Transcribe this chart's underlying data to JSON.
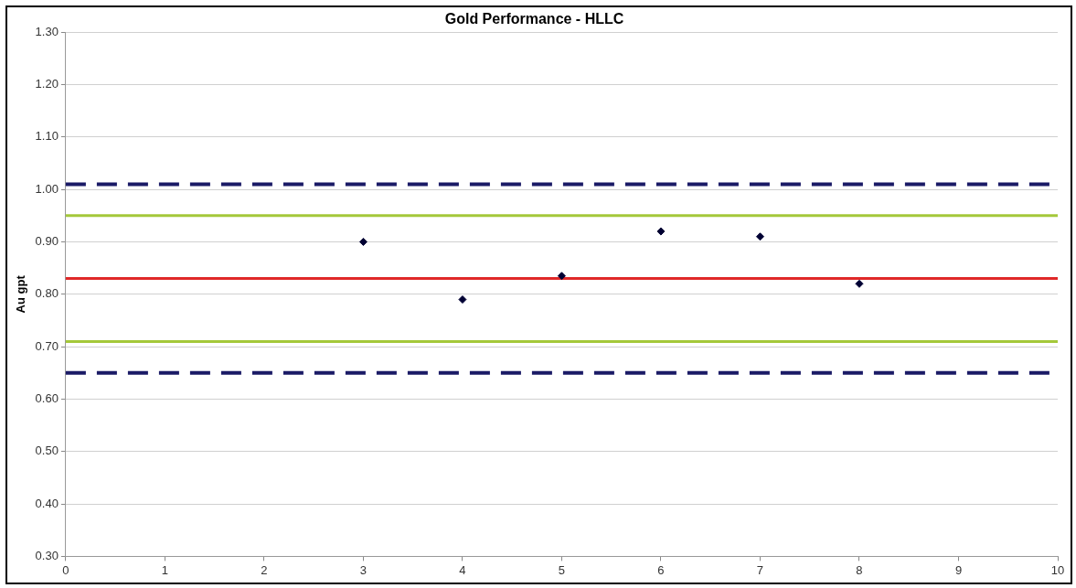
{
  "chart_data": {
    "type": "scatter",
    "title": "Gold Performance - HLLC",
    "ylabel": "Au gpt",
    "x": [
      3,
      4,
      5,
      6,
      7,
      8
    ],
    "values": [
      0.9,
      0.79,
      0.835,
      0.92,
      0.91,
      0.82
    ],
    "color": "#000033",
    "marker": "diamond",
    "xlim": [
      0,
      10
    ],
    "xticks": [
      0,
      1,
      2,
      3,
      4,
      5,
      6,
      7,
      8,
      9,
      10
    ],
    "ylim": [
      0.3,
      1.3
    ],
    "yticks": [
      {
        "value": 0.3,
        "label": "0.30"
      },
      {
        "value": 0.4,
        "label": "0.40"
      },
      {
        "value": 0.5,
        "label": "0.50"
      },
      {
        "value": 0.6,
        "label": "0.60"
      },
      {
        "value": 0.7,
        "label": "0.70"
      },
      {
        "value": 0.8,
        "label": "0.80"
      },
      {
        "value": 0.9,
        "label": "0.90"
      },
      {
        "value": 1.0,
        "label": "1.00"
      },
      {
        "value": 1.1,
        "label": "1.10"
      },
      {
        "value": 1.2,
        "label": "1.20"
      },
      {
        "value": 1.3,
        "label": "1.30"
      }
    ],
    "grid": "y",
    "legend": false,
    "ref_lines": [
      {
        "axis": "y",
        "value": 1.01,
        "color": "#1a1a66",
        "line_style": "dashed"
      },
      {
        "axis": "y",
        "value": 0.95,
        "color": "#a4c83a",
        "line_style": "solid"
      },
      {
        "axis": "y",
        "value": 0.83,
        "color": "#e02828",
        "line_style": "solid"
      },
      {
        "axis": "y",
        "value": 0.71,
        "color": "#a4c83a",
        "line_style": "solid"
      },
      {
        "axis": "y",
        "value": 0.65,
        "color": "#1a1a66",
        "line_style": "dashed"
      }
    ]
  }
}
